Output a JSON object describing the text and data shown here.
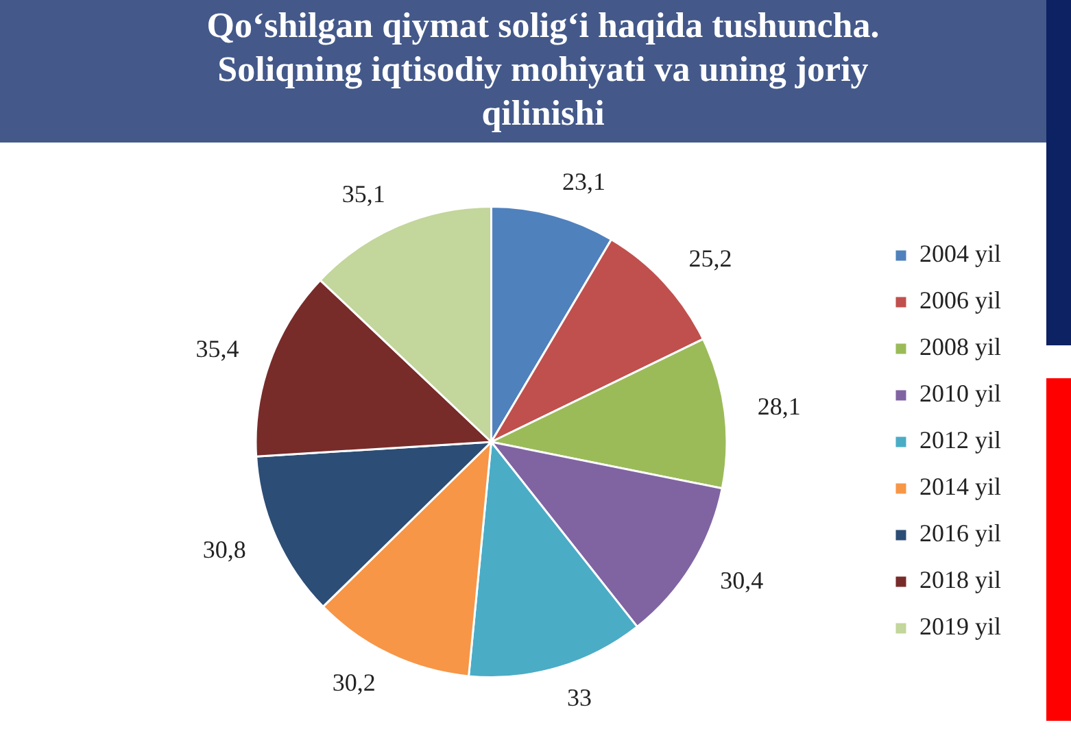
{
  "chart_data": {
    "type": "pie",
    "title": "Qo‘shilgan qiymat solig‘i haqida tushuncha. Soliqning iqtisodiy mohiyati va uning joriy qilinishi",
    "categories": [
      "2004 yil",
      "2006 yil",
      "2008 yil",
      "2010 yil",
      "2012 yil",
      "2014 yil",
      "2016 yil",
      "2018 yil",
      "2019 yil"
    ],
    "values": [
      23.1,
      25.2,
      28.1,
      30.4,
      33,
      30.2,
      30.8,
      35.4,
      35.1
    ],
    "value_labels": [
      "23,1",
      "25,2",
      "28,1",
      "30,4",
      "33",
      "30,2",
      "30,8",
      "35,4",
      "35,1"
    ],
    "colors": [
      "#4f81bd",
      "#c0504d",
      "#9bbb59",
      "#8064a2",
      "#4bacc6",
      "#f79646",
      "#2c4d75",
      "#772c2a",
      "#c3d69b"
    ],
    "legend": "right"
  }
}
